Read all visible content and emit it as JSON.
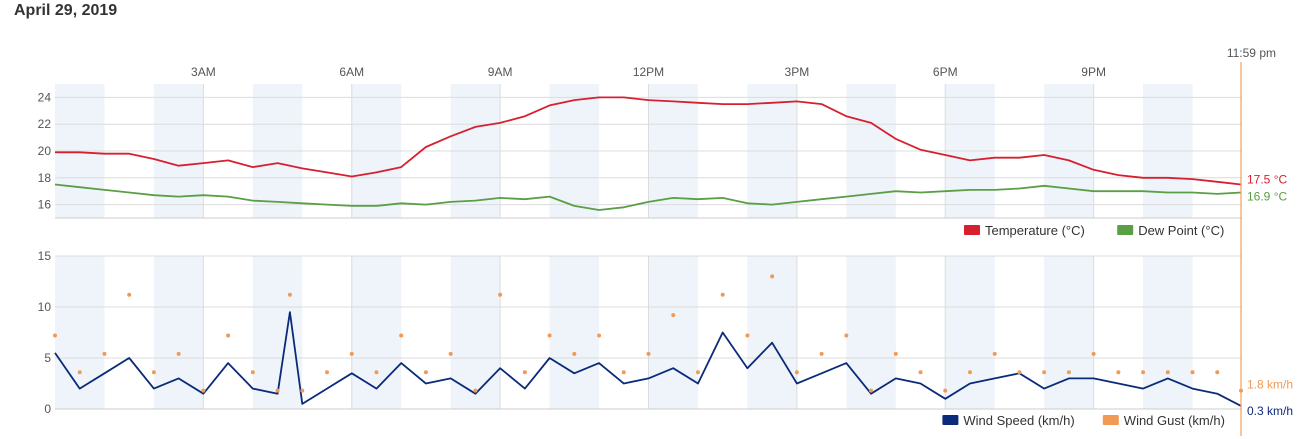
{
  "page": {
    "date": "April 29, 2019",
    "time_marker": "11:59 pm"
  },
  "colors": {
    "temperature": "#d62030",
    "dew_point": "#5a9e45",
    "wind_speed": "#0a2a7a",
    "wind_gust": "#f09a55",
    "band": "#eef4fa",
    "marker": "#f0a060"
  },
  "chart_data": [
    {
      "type": "line",
      "ylim": [
        15,
        25
      ],
      "yticks": [
        16,
        18,
        20,
        22,
        24
      ],
      "xlim_hours": [
        0,
        24
      ],
      "xticks": [
        {
          "h": 3,
          "label": "3AM"
        },
        {
          "h": 6,
          "label": "6AM"
        },
        {
          "h": 9,
          "label": "9AM"
        },
        {
          "h": 12,
          "label": "12PM"
        },
        {
          "h": 15,
          "label": "3PM"
        },
        {
          "h": 18,
          "label": "6PM"
        },
        {
          "h": 21,
          "label": "9PM"
        }
      ],
      "legend": "bottom-right",
      "series": [
        {
          "name": "Temperature (°C)",
          "end_label": "17.5 °C",
          "x": [
            0,
            0.5,
            1,
            1.5,
            2,
            2.5,
            3,
            3.5,
            4,
            4.5,
            5,
            5.5,
            6,
            6.5,
            7,
            7.5,
            8,
            8.5,
            9,
            9.5,
            10,
            10.5,
            11,
            11.5,
            12,
            12.5,
            13,
            13.5,
            14,
            14.5,
            15,
            15.5,
            16,
            16.5,
            17,
            17.5,
            18,
            18.5,
            19,
            19.5,
            20,
            20.5,
            21,
            21.5,
            22,
            22.5,
            23,
            23.5,
            23.98
          ],
          "values": [
            19.9,
            19.9,
            19.8,
            19.8,
            19.4,
            18.9,
            19.1,
            19.3,
            18.8,
            19.1,
            18.7,
            18.4,
            18.1,
            18.4,
            18.8,
            20.3,
            21.1,
            21.8,
            22.1,
            22.6,
            23.4,
            23.8,
            24.0,
            24.0,
            23.8,
            23.7,
            23.6,
            23.5,
            23.5,
            23.6,
            23.7,
            23.5,
            22.6,
            22.1,
            20.9,
            20.1,
            19.7,
            19.3,
            19.5,
            19.5,
            19.7,
            19.3,
            18.6,
            18.2,
            18.0,
            18.0,
            17.9,
            17.7,
            17.5
          ]
        },
        {
          "name": "Dew Point (°C)",
          "end_label": "16.9 °C",
          "x": [
            0,
            0.5,
            1,
            1.5,
            2,
            2.5,
            3,
            3.5,
            4,
            4.5,
            5,
            5.5,
            6,
            6.5,
            7,
            7.5,
            8,
            8.5,
            9,
            9.5,
            10,
            10.5,
            11,
            11.5,
            12,
            12.5,
            13,
            13.5,
            14,
            14.5,
            15,
            15.5,
            16,
            16.5,
            17,
            17.5,
            18,
            18.5,
            19,
            19.5,
            20,
            20.5,
            21,
            21.5,
            22,
            22.5,
            23,
            23.5,
            23.98
          ],
          "values": [
            17.5,
            17.3,
            17.1,
            16.9,
            16.7,
            16.6,
            16.7,
            16.6,
            16.3,
            16.2,
            16.1,
            16.0,
            15.9,
            15.9,
            16.1,
            16.0,
            16.2,
            16.3,
            16.5,
            16.4,
            16.6,
            15.9,
            15.6,
            15.8,
            16.2,
            16.5,
            16.4,
            16.5,
            16.1,
            16.0,
            16.2,
            16.4,
            16.6,
            16.8,
            17.0,
            16.9,
            17.0,
            17.1,
            17.1,
            17.2,
            17.4,
            17.2,
            17.0,
            17.0,
            17.0,
            16.9,
            16.9,
            16.8,
            16.9
          ]
        }
      ]
    },
    {
      "type": "line",
      "ylim": [
        0,
        15
      ],
      "yticks": [
        0,
        5,
        10,
        15
      ],
      "xlim_hours": [
        0,
        24
      ],
      "legend": "bottom-right",
      "series": [
        {
          "name": "Wind Speed (km/h)",
          "end_label": "0.3 km/h",
          "x": [
            0,
            0.5,
            1,
            1.5,
            2,
            2.5,
            3,
            3.5,
            4,
            4.5,
            4.75,
            5,
            5.5,
            6,
            6.5,
            7,
            7.5,
            8,
            8.5,
            9,
            9.5,
            10,
            10.5,
            11,
            11.5,
            12,
            12.5,
            13,
            13.5,
            14,
            14.5,
            15,
            15.5,
            16,
            16.5,
            17,
            17.5,
            18,
            18.5,
            19,
            19.5,
            20,
            20.5,
            21,
            21.5,
            22,
            22.5,
            23,
            23.5,
            23.98
          ],
          "values": [
            5.5,
            2.0,
            3.5,
            5.0,
            2.0,
            3.0,
            1.5,
            4.5,
            2.0,
            1.5,
            9.5,
            0.5,
            2.0,
            3.5,
            2.0,
            4.5,
            2.5,
            3.0,
            1.5,
            4.0,
            2.0,
            5.0,
            3.5,
            4.5,
            2.5,
            3.0,
            4.0,
            2.5,
            7.5,
            4.0,
            6.5,
            2.5,
            3.5,
            4.5,
            1.5,
            3.0,
            2.5,
            1.0,
            2.5,
            3.0,
            3.5,
            2.0,
            3.0,
            3.0,
            2.5,
            2.0,
            3.0,
            2.0,
            1.5,
            0.3
          ]
        },
        {
          "name": "Wind Gust (km/h)",
          "end_label": "1.8 km/h",
          "x": [
            0,
            0.5,
            1,
            1.5,
            2,
            2.5,
            3,
            3.5,
            4,
            4.5,
            4.75,
            5,
            5.5,
            6,
            6.5,
            7,
            7.5,
            8,
            8.5,
            9,
            9.5,
            10,
            10.5,
            11,
            11.5,
            12,
            12.5,
            13,
            13.5,
            14,
            14.5,
            15,
            15.5,
            16,
            16.5,
            17,
            17.5,
            18,
            18.5,
            19,
            19.5,
            20,
            20.5,
            21,
            21.5,
            22,
            22.5,
            23,
            23.5,
            23.98
          ],
          "values": [
            7.2,
            3.6,
            5.4,
            11.2,
            3.6,
            5.4,
            1.8,
            7.2,
            3.6,
            1.8,
            11.2,
            1.8,
            3.6,
            5.4,
            3.6,
            7.2,
            3.6,
            5.4,
            1.8,
            11.2,
            3.6,
            7.2,
            5.4,
            7.2,
            3.6,
            5.4,
            9.2,
            3.6,
            11.2,
            7.2,
            13.0,
            3.6,
            5.4,
            7.2,
            1.8,
            5.4,
            3.6,
            1.8,
            3.6,
            5.4,
            3.6,
            3.6,
            3.6,
            5.4,
            3.6,
            3.6,
            3.6,
            3.6,
            3.6,
            1.8
          ]
        }
      ]
    }
  ]
}
